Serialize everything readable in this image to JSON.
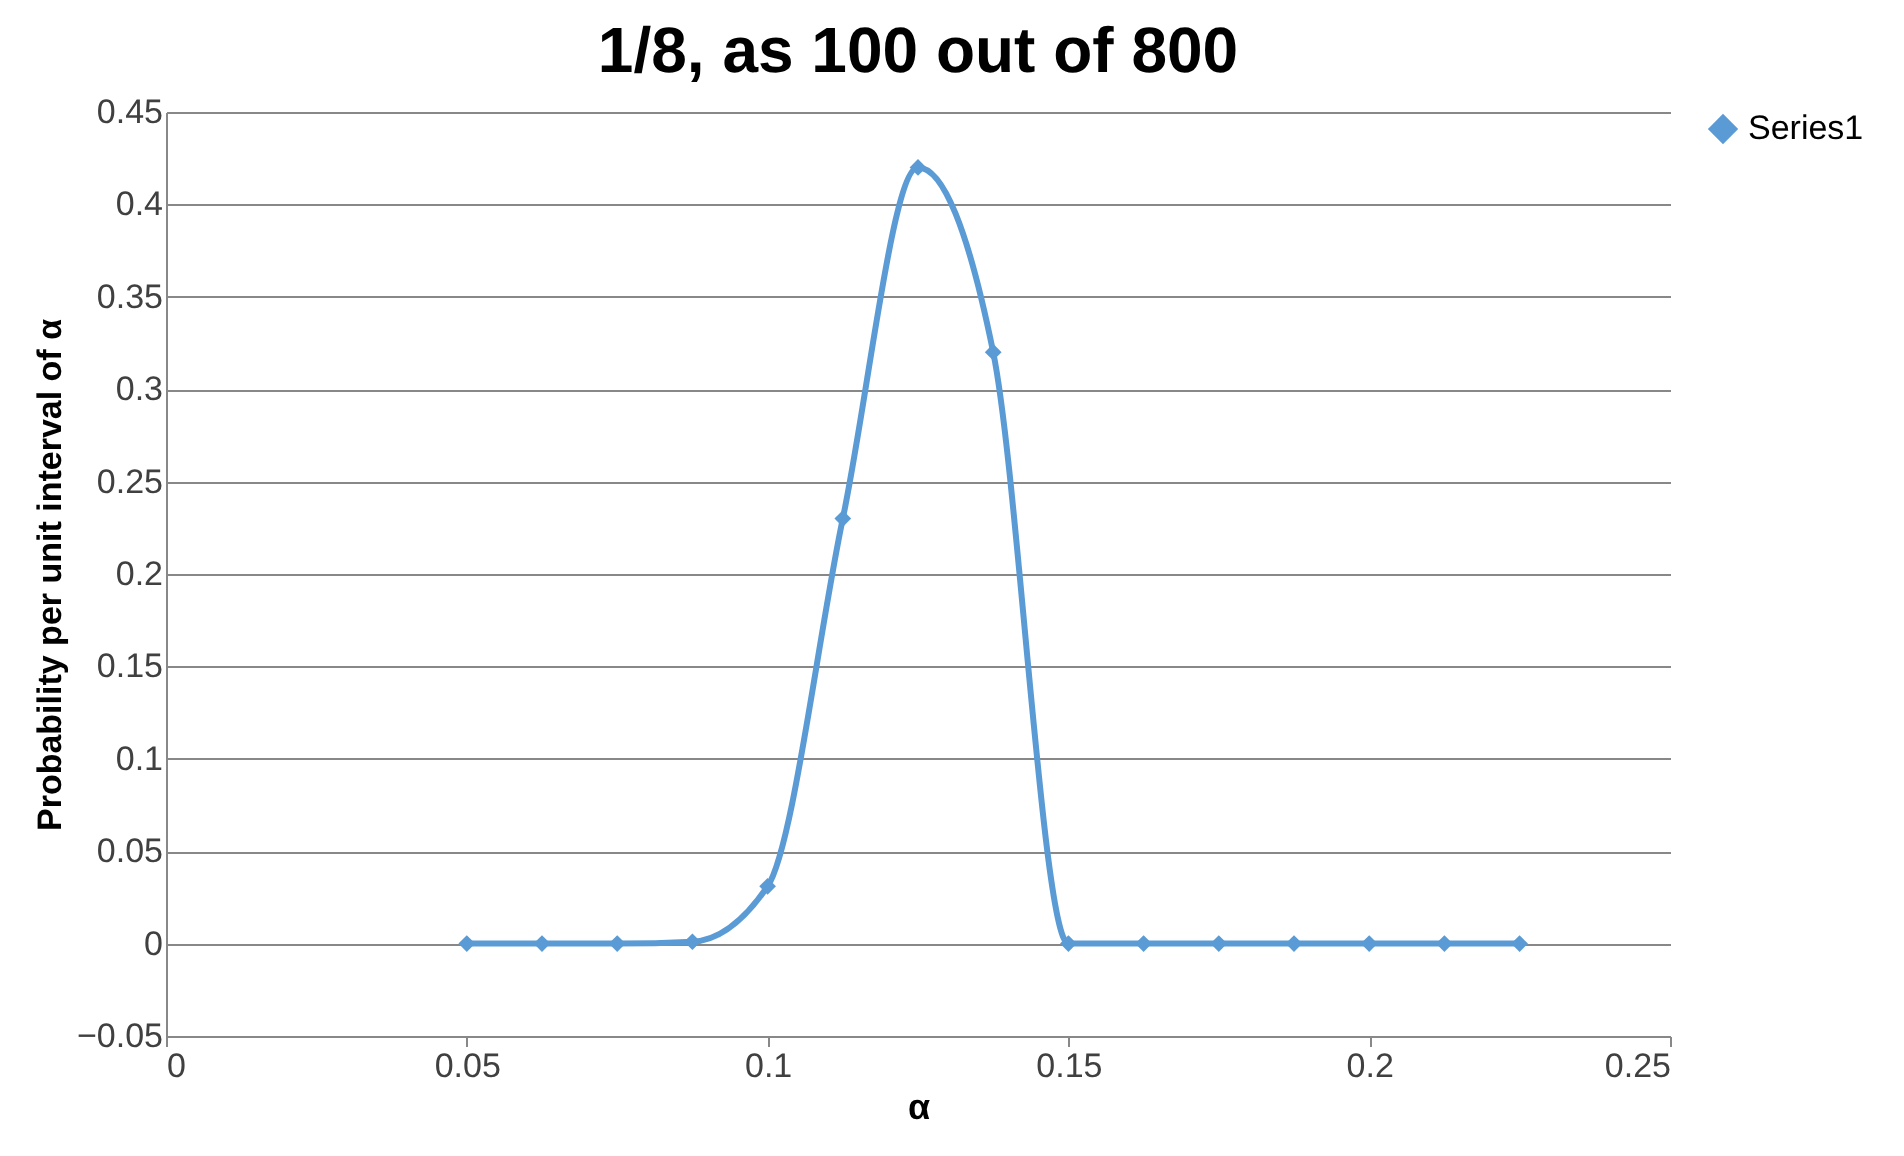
{
  "chart_data": {
    "type": "line",
    "title": "1/8, as 100 out of 800",
    "xlabel": "α",
    "ylabel": "Probability per unit interval of α",
    "x": [
      0.05,
      0.0625,
      0.075,
      0.0875,
      0.1,
      0.1125,
      0.125,
      0.1375,
      0.15,
      0.1625,
      0.175,
      0.1875,
      0.2,
      0.2125,
      0.225
    ],
    "series": [
      {
        "name": "Series1",
        "color": "#5b9bd5",
        "values": [
          0,
          0,
          0,
          0.001,
          0.031,
          0.23,
          0.42,
          0.32,
          0,
          0,
          0,
          0,
          0,
          0,
          0
        ]
      }
    ],
    "xlim": [
      0,
      0.25
    ],
    "xticks": [
      0,
      0.05,
      0.1,
      0.15,
      0.2,
      0.25
    ],
    "ylim": [
      -0.05,
      0.45
    ],
    "yticks": [
      -0.05,
      0,
      0.05,
      0.1,
      0.15,
      0.2,
      0.25,
      0.3,
      0.35,
      0.4,
      0.45
    ],
    "grid": "y",
    "legend": "right",
    "marker": "diamond",
    "line_style": "solid"
  }
}
